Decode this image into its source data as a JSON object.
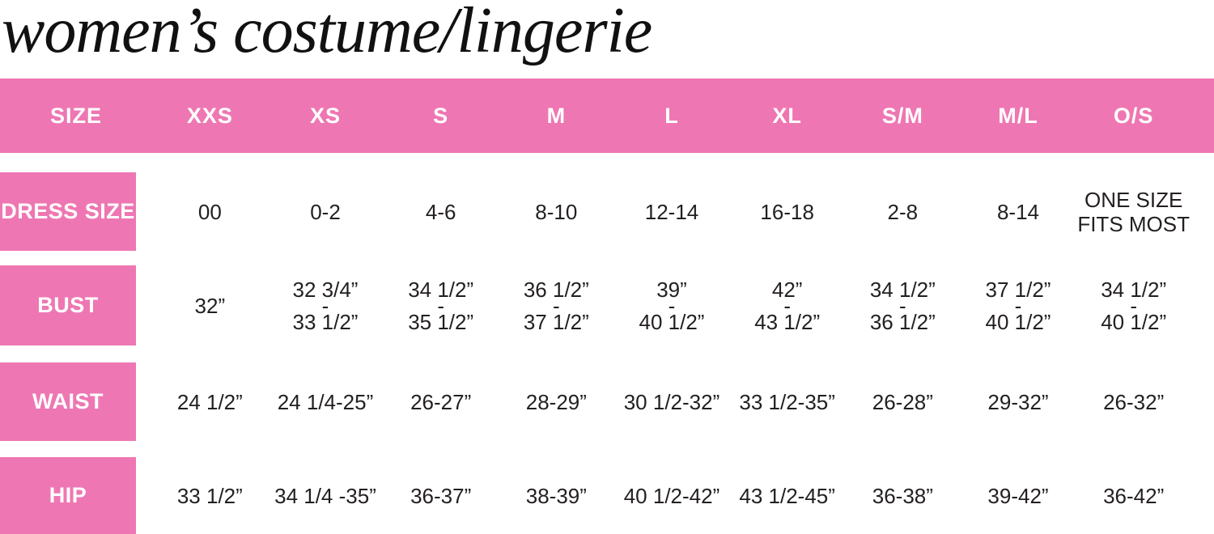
{
  "title": "women’s costume/lingerie",
  "colors": {
    "pink": "#ee77b3",
    "header_text": "#ffffff",
    "cell_text": "#231f20",
    "background": "#ffffff"
  },
  "chart_data": {
    "type": "table",
    "title": "women’s costume/lingerie",
    "columns": [
      "SIZE",
      "XXS",
      "XS",
      "S",
      "M",
      "L",
      "XL",
      "S/M",
      "M/L",
      "O/S"
    ],
    "rows": [
      {
        "label": "DRESS SIZE",
        "values": [
          "00",
          "0-2",
          "4-6",
          "8-10",
          "12-14",
          "16-18",
          "2-8",
          "8-14",
          "ONE SIZE\nFITS MOST"
        ]
      },
      {
        "label": "BUST",
        "values": [
          "32”",
          "32 3/4”\n-\n33 1/2”",
          "34 1/2”\n-\n35 1/2”",
          "36 1/2”\n-\n37 1/2”",
          "39”\n-\n40 1/2”",
          "42”\n-\n43 1/2”",
          "34 1/2”\n-\n36 1/2”",
          "37 1/2”\n-\n40 1/2”",
          "34 1/2”\n-\n40 1/2”"
        ]
      },
      {
        "label": "WAIST",
        "values": [
          "24 1/2”",
          "24 1/4-25”",
          "26-27”",
          "28-29”",
          "30 1/2-32”",
          "33 1/2-35”",
          "26-28”",
          "29-32”",
          "26-32”"
        ]
      },
      {
        "label": "HIP",
        "values": [
          "33 1/2”",
          "34 1/4 -35”",
          "36-37”",
          "38-39”",
          "40 1/2-42”",
          "43 1/2-45”",
          "36-38”",
          "39-42”",
          "36-42”"
        ]
      }
    ]
  }
}
